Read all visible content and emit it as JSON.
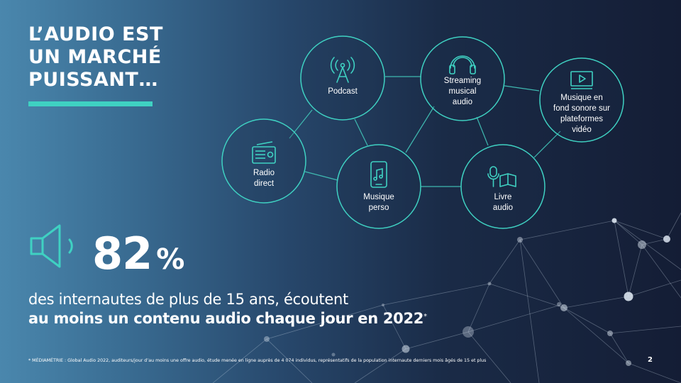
{
  "title": {
    "lines": [
      "L’AUDIO EST",
      "UN MARCHÉ",
      "PUISSANT…"
    ]
  },
  "diagram": {
    "nodes": [
      {
        "id": "podcast",
        "label": "Podcast",
        "icon": "podcast-antenna-icon"
      },
      {
        "id": "streaming",
        "label": "Streaming\nmusical\naudio",
        "icon": "headphones-icon"
      },
      {
        "id": "video",
        "label": "Musique en\nfond sonore sur\nplateformes\nvidéo",
        "icon": "video-play-icon"
      },
      {
        "id": "radio",
        "label": "Radio\ndirect",
        "icon": "radio-icon"
      },
      {
        "id": "perso",
        "label": "Musique\nperso",
        "icon": "smartphone-music-icon"
      },
      {
        "id": "livre",
        "label": "Livre\naudio",
        "icon": "microphone-book-icon"
      }
    ]
  },
  "stat": {
    "value": "82",
    "unit": "%",
    "icon": "speaker-icon",
    "line1": "des internautes de plus de 15 ans, écoutent",
    "line2": "au moins un contenu audio chaque jour en 2022",
    "marker": "*"
  },
  "footnote": "* MÉDIAMÉTRIE : Global Audio 2022, auditeurs/jour d’au moins une offre audio, étude menée en ligne auprès de 4 074 individus, représentatifs de la population internaute derniers mois âgés de 15 et plus",
  "page_number": "2",
  "colors": {
    "accent": "#3fd1c2",
    "background_left": "#4a87ad",
    "background_right": "#141d35",
    "text": "#ffffff"
  }
}
